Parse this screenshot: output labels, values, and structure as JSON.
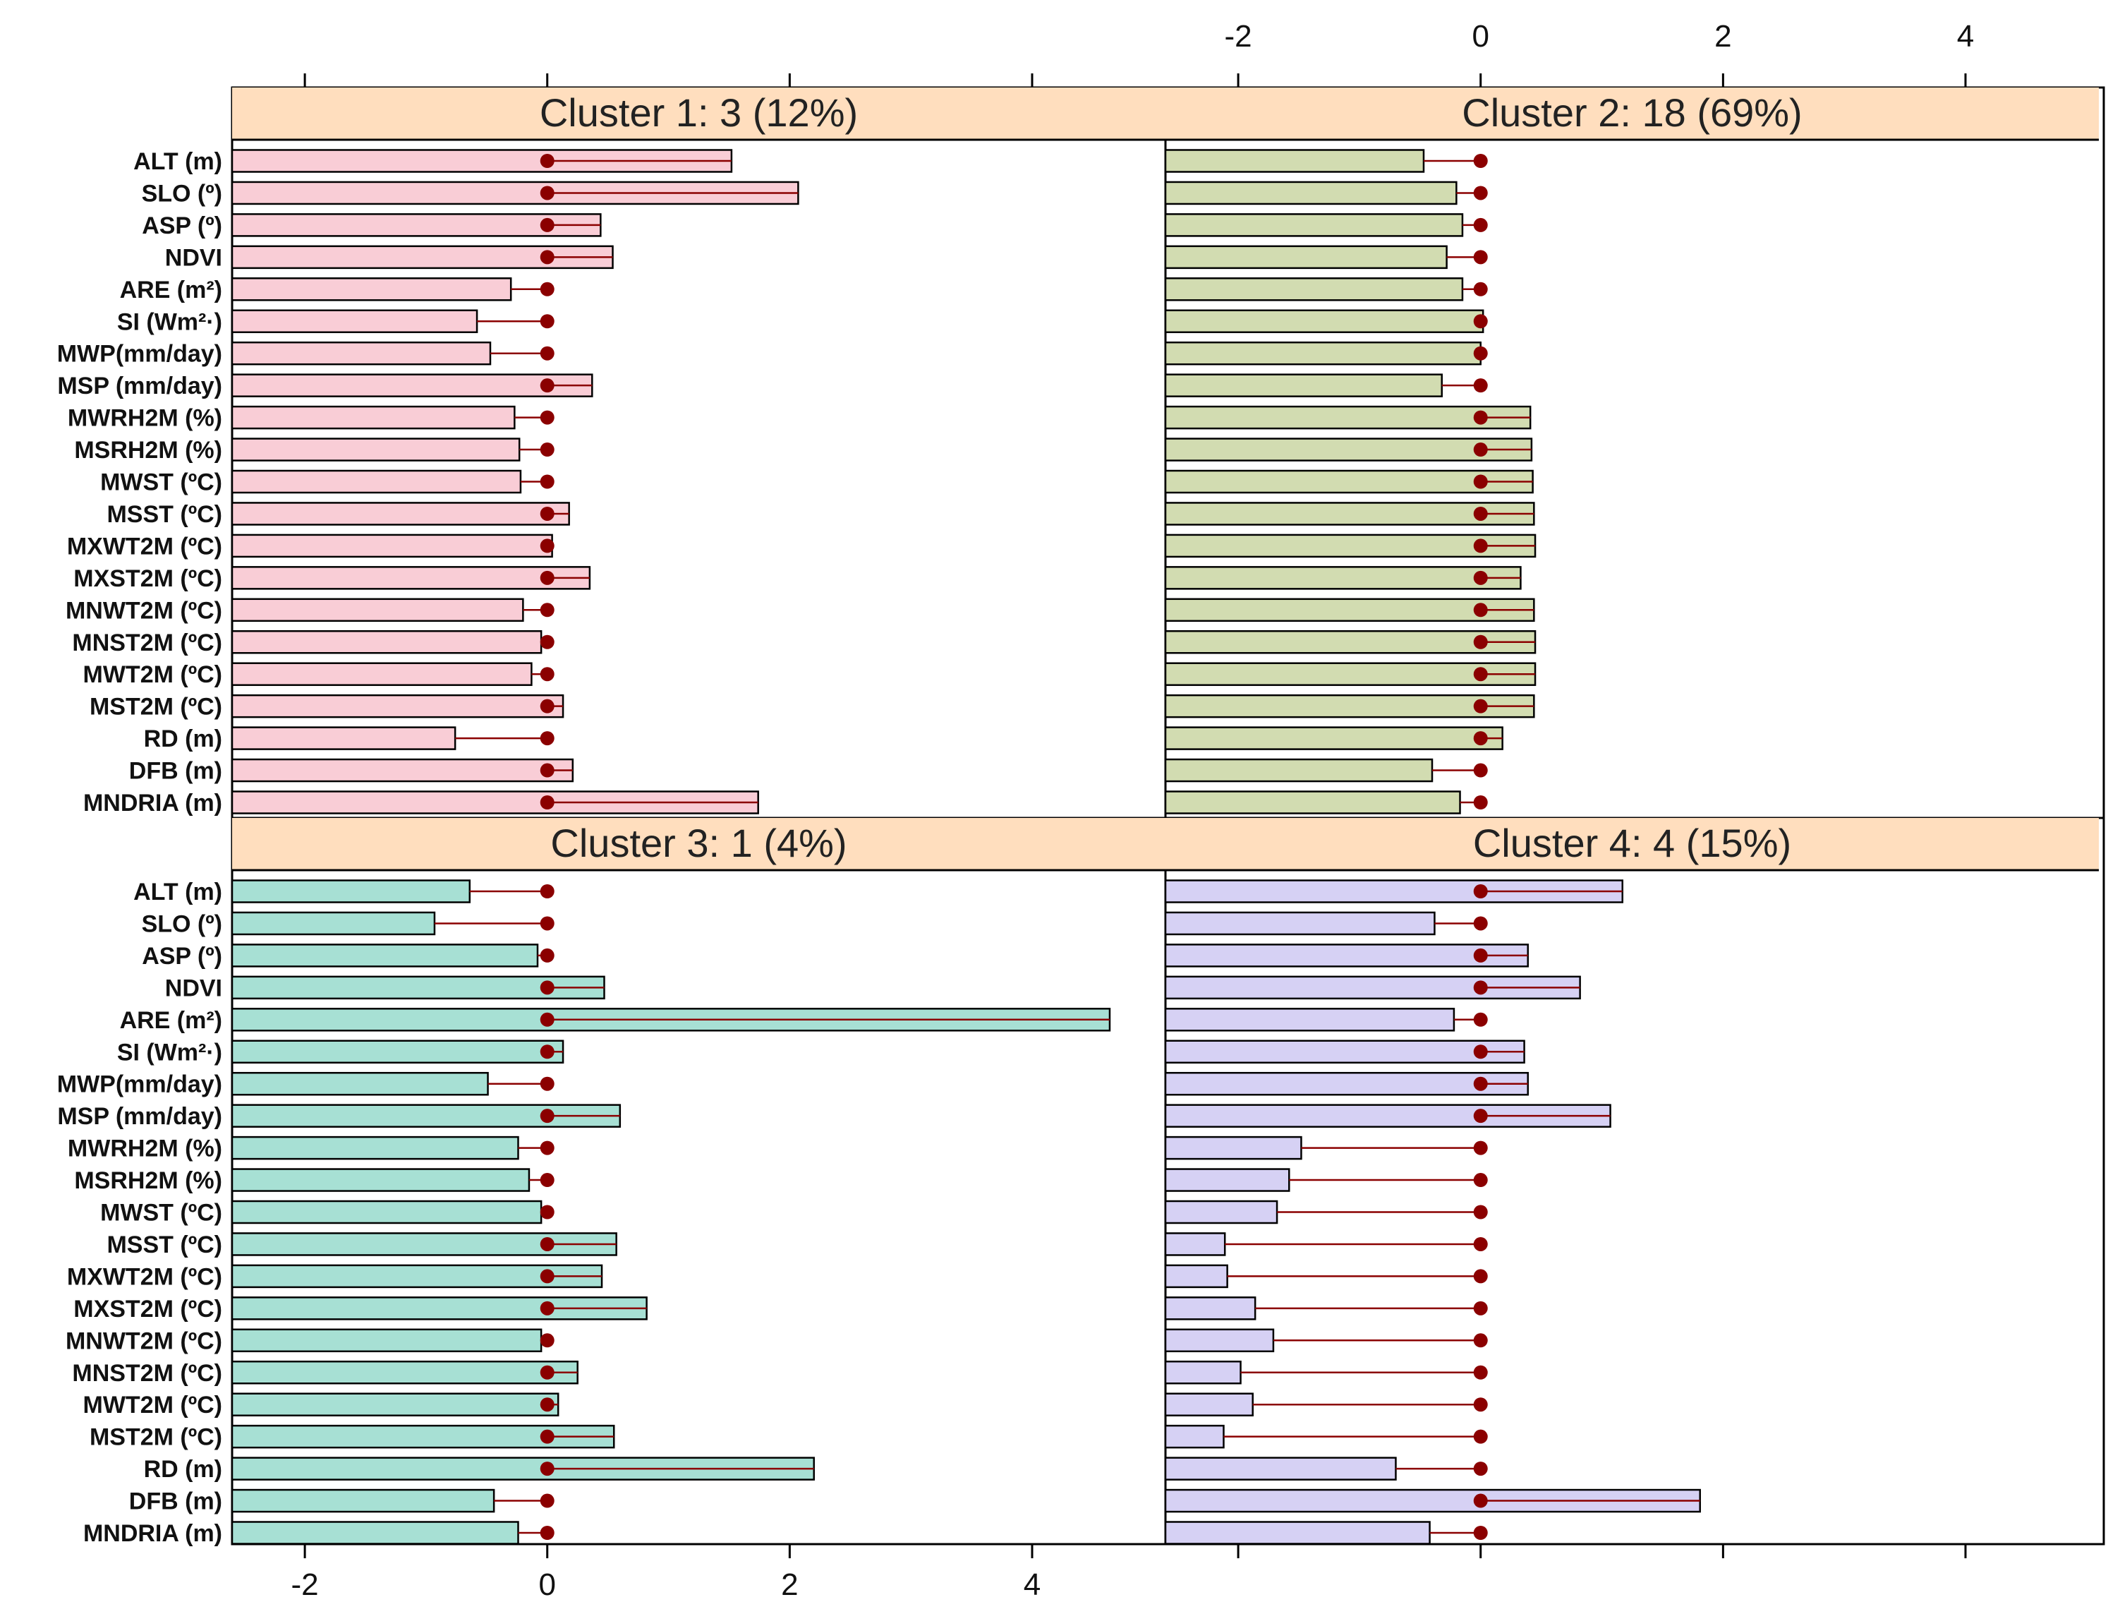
{
  "chart_data": {
    "type": "bar",
    "layout": "2x2 panels, horizontal bars with reference at 0",
    "variables": [
      "ALT (m)",
      "SLO (º)",
      "ASP (º)",
      "NDVI",
      "ARE (m²)",
      "SI (Wm²·)",
      "MWP(mm/day)",
      "MSP (mm/day)",
      "MWRH2M (%)",
      "MSRH2M (%)",
      "MWST (ºC)",
      "MSST (ºC)",
      "MXWT2M (ºC)",
      "MXST2M (ºC)",
      "MNWT2M (ºC)",
      "MNST2M (ºC)",
      "MWT2M (ºC)",
      "MST2M (ºC)",
      "RD (m)",
      "DFB (m)",
      "MNDRIA (m)"
    ],
    "xlim": [
      -2.6,
      5.1
    ],
    "xticks": [
      -2,
      0,
      2,
      4
    ],
    "xtick_labels": [
      "-2",
      "0",
      "2",
      "4"
    ],
    "reference_value": 0,
    "reference_color": "#8b0000",
    "panels": [
      {
        "title": "Cluster 1: 3 (12%)",
        "color": "#f9cdd6",
        "values": [
          1.52,
          2.07,
          0.44,
          0.54,
          -0.3,
          -0.58,
          -0.47,
          0.37,
          -0.27,
          -0.23,
          -0.22,
          0.18,
          0.04,
          0.35,
          -0.2,
          -0.05,
          -0.13,
          0.13,
          -0.76,
          0.21,
          1.74
        ]
      },
      {
        "title": "Cluster 2: 18 (69%)",
        "color": "#d2dcb1",
        "values": [
          -0.47,
          -0.2,
          -0.15,
          -0.28,
          -0.15,
          0.02,
          0.0,
          -0.32,
          0.41,
          0.42,
          0.43,
          0.44,
          0.45,
          0.33,
          0.44,
          0.45,
          0.45,
          0.44,
          0.18,
          -0.4,
          -0.17
        ]
      },
      {
        "title": "Cluster 3: 1 (4%)",
        "color": "#a7e0d4",
        "values": [
          -0.64,
          -0.93,
          -0.08,
          0.47,
          4.64,
          0.13,
          -0.49,
          0.6,
          -0.24,
          -0.15,
          -0.05,
          0.57,
          0.45,
          0.82,
          -0.05,
          0.25,
          0.09,
          0.55,
          2.2,
          -0.44,
          -0.24
        ]
      },
      {
        "title": "Cluster 4: 4 (15%)",
        "color": "#d6d1f4",
        "values": [
          1.17,
          -0.38,
          0.39,
          0.82,
          -0.22,
          0.36,
          0.39,
          1.07,
          -1.48,
          -1.58,
          -1.68,
          -2.11,
          -2.09,
          -1.86,
          -1.71,
          -1.98,
          -1.88,
          -2.12,
          -0.7,
          1.81,
          -0.42
        ]
      }
    ]
  }
}
